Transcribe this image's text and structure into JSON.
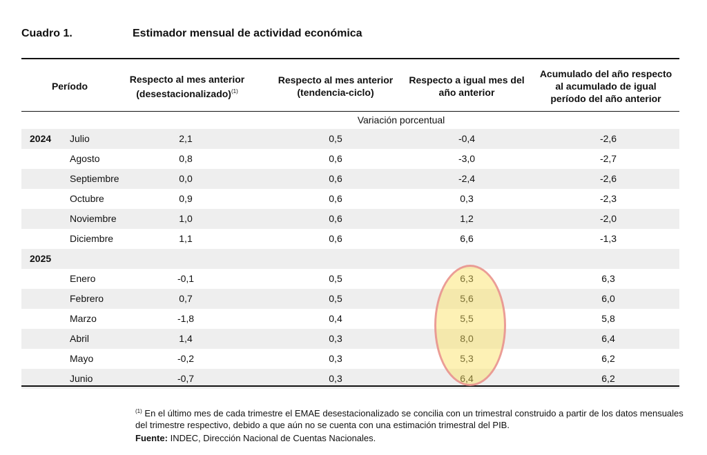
{
  "header": {
    "label": "Cuadro 1.",
    "title": "Estimador mensual de actividad económica"
  },
  "columns": {
    "period": "Período",
    "c1_line1": "Respecto al mes anterior",
    "c1_line2": "(desestacionalizado)",
    "c1_note": "(1)",
    "c2_line1": "Respecto al mes anterior",
    "c2_line2": "(tendencia-ciclo)",
    "c3_line1": "Respecto a igual mes del",
    "c3_line2": "año anterior",
    "c4_line1": "Acumulado del año respecto",
    "c4_line2": "al acumulado de igual",
    "c4_line3": "período del año anterior"
  },
  "subheader": "Variación porcentual",
  "rows": [
    {
      "year": "2024",
      "month": "Julio",
      "c1": "2,1",
      "c2": "0,5",
      "c3": "-0,4",
      "c4": "-2,6"
    },
    {
      "year": "",
      "month": "Agosto",
      "c1": "0,8",
      "c2": "0,6",
      "c3": "-3,0",
      "c4": "-2,7"
    },
    {
      "year": "",
      "month": "Septiembre",
      "c1": "0,0",
      "c2": "0,6",
      "c3": "-2,4",
      "c4": "-2,6"
    },
    {
      "year": "",
      "month": "Octubre",
      "c1": "0,9",
      "c2": "0,6",
      "c3": "0,3",
      "c4": "-2,3"
    },
    {
      "year": "",
      "month": "Noviembre",
      "c1": "1,0",
      "c2": "0,6",
      "c3": "1,2",
      "c4": "-2,0"
    },
    {
      "year": "",
      "month": "Diciembre",
      "c1": "1,1",
      "c2": "0,6",
      "c3": "6,6",
      "c4": "-1,3"
    },
    {
      "year": "2025",
      "month": "",
      "c1": "",
      "c2": "",
      "c3": "",
      "c4": ""
    },
    {
      "year": "",
      "month": "Enero",
      "c1": "-0,1",
      "c2": "0,5",
      "c3": "6,3",
      "c4": "6,3"
    },
    {
      "year": "",
      "month": "Febrero",
      "c1": "0,7",
      "c2": "0,5",
      "c3": "5,6",
      "c4": "6,0"
    },
    {
      "year": "",
      "month": "Marzo",
      "c1": "-1,8",
      "c2": "0,4",
      "c3": "5,5",
      "c4": "5,8"
    },
    {
      "year": "",
      "month": "Abril",
      "c1": "1,4",
      "c2": "0,3",
      "c3": "8,0",
      "c4": "6,4"
    },
    {
      "year": "",
      "month": "Mayo",
      "c1": "-0,2",
      "c2": "0,3",
      "c3": "5,3",
      "c4": "6,2"
    },
    {
      "year": "",
      "month": "Junio",
      "c1": "-0,7",
      "c2": "0,3",
      "c3": "6,4",
      "c4": "6,2"
    }
  ],
  "footnote": {
    "marker": "(1)",
    "text": "En el último mes de cada trimestre el EMAE desestacionalizado se concilia con un trimestral construido a partir de los datos mensuales del trimestre respectivo, debido a que aún no se cuenta con una estimación trimestral del PIB."
  },
  "source": {
    "label": "Fuente:",
    "text": "INDEC, Dirección Nacional de Cuentas Nacionales."
  },
  "colors": {
    "row_shade": "#eeeeee",
    "highlight_fill": "#fae15a",
    "highlight_border": "#e6828c"
  }
}
